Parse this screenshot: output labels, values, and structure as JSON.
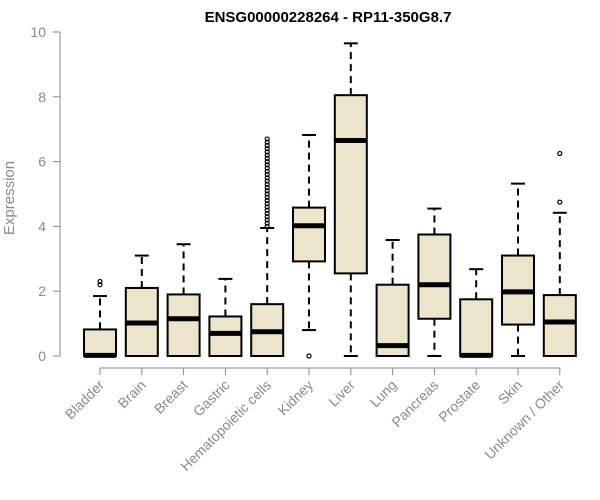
{
  "chart_data": {
    "type": "boxplot",
    "title": "ENSG00000228264 - RP11-350G8.7",
    "xlabel": "",
    "ylabel": "Expression",
    "ylim": [
      0,
      10
    ],
    "yticks": [
      0,
      2,
      4,
      6,
      8,
      10
    ],
    "grid": false,
    "colors": {
      "box_fill": "#ede5cb",
      "box_stroke": "#000000",
      "axis": "#8a8a8a"
    },
    "categories": [
      "Bladder",
      "Brain",
      "Breast",
      "Gastric",
      "Hematopoietic cells",
      "Kidney",
      "Liver",
      "Lung",
      "Pancreas",
      "Prostate",
      "Skin",
      "Unknown / Other"
    ],
    "boxes": [
      {
        "min": 0.0,
        "q1": 0.0,
        "median": 0.02,
        "q3": 0.82,
        "max": 1.85,
        "outliers": [
          2.2,
          2.3
        ]
      },
      {
        "min": 0.0,
        "q1": 0.0,
        "median": 1.02,
        "q3": 2.1,
        "max": 3.1,
        "outliers": []
      },
      {
        "min": 0.0,
        "q1": 0.0,
        "median": 1.15,
        "q3": 1.9,
        "max": 3.45,
        "outliers": []
      },
      {
        "min": 0.0,
        "q1": 0.0,
        "median": 0.7,
        "q3": 1.22,
        "max": 2.38,
        "outliers": []
      },
      {
        "min": 0.0,
        "q1": 0.0,
        "median": 0.75,
        "q3": 1.6,
        "max": 3.95,
        "outliers": [
          4.0,
          4.1,
          4.2,
          4.3,
          4.4,
          4.5,
          4.6,
          4.7,
          4.8,
          4.9,
          5.0,
          5.1,
          5.2,
          5.3,
          5.4,
          5.5,
          5.6,
          5.7,
          5.8,
          5.9,
          6.0,
          6.1,
          6.2,
          6.3,
          6.4,
          6.5,
          6.6,
          6.7
        ]
      },
      {
        "min": 0.8,
        "q1": 2.92,
        "median": 4.02,
        "q3": 4.58,
        "max": 6.82,
        "outliers": [
          0.0
        ]
      },
      {
        "min": 0.0,
        "q1": 2.55,
        "median": 6.65,
        "q3": 8.05,
        "max": 9.65,
        "outliers": []
      },
      {
        "min": 0.0,
        "q1": 0.0,
        "median": 0.32,
        "q3": 2.2,
        "max": 3.58,
        "outliers": []
      },
      {
        "min": 0.0,
        "q1": 1.15,
        "median": 2.2,
        "q3": 3.75,
        "max": 4.55,
        "outliers": []
      },
      {
        "min": 0.0,
        "q1": 0.0,
        "median": 0.02,
        "q3": 1.75,
        "max": 2.68,
        "outliers": []
      },
      {
        "min": 0.0,
        "q1": 0.97,
        "median": 1.98,
        "q3": 3.1,
        "max": 5.32,
        "outliers": []
      },
      {
        "min": 0.0,
        "q1": 0.0,
        "median": 1.05,
        "q3": 1.88,
        "max": 4.42,
        "outliers": [
          4.75,
          6.25
        ]
      }
    ]
  }
}
